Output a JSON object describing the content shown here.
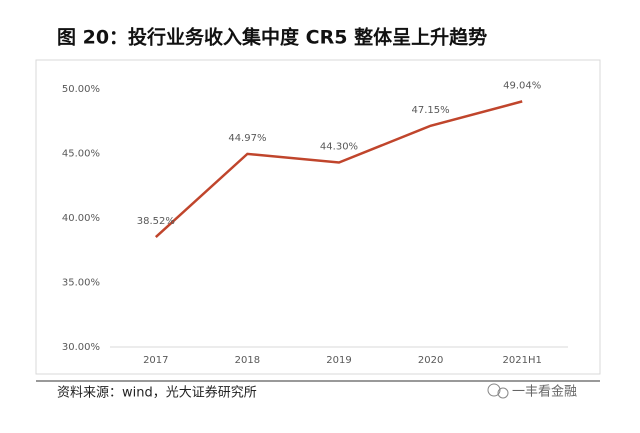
{
  "chart_data": {
    "type": "line",
    "title": "图 20：投行业务收入集中度 CR5 整体呈上升趋势",
    "categories": [
      "2017",
      "2018",
      "2019",
      "2020",
      "2021H1"
    ],
    "values": [
      38.52,
      44.97,
      44.3,
      47.15,
      49.04
    ],
    "value_labels": [
      "38.52%",
      "44.97%",
      "44.30%",
      "47.15%",
      "49.04%"
    ],
    "color": "#c0452c",
    "ylim": [
      30,
      50
    ],
    "yticks": [
      {
        "value": 30,
        "label": "30.00%"
      },
      {
        "value": 35,
        "label": "35.00%"
      },
      {
        "value": 40,
        "label": "40.00%"
      },
      {
        "value": 45,
        "label": "45.00%"
      },
      {
        "value": 50,
        "label": "50.00%"
      }
    ],
    "source": "资料来源：wind，光大证券研究所",
    "watermark": "一丰看金融"
  }
}
